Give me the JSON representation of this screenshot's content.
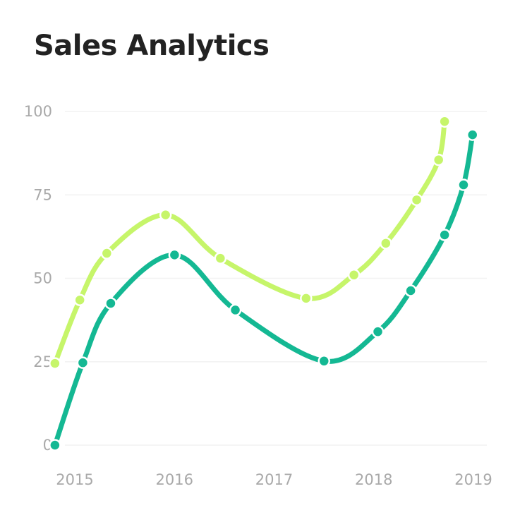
{
  "chart_data": {
    "type": "line",
    "title": "Sales Analytics",
    "xlabel": "",
    "ylabel": "",
    "x_ticks": [
      "2015",
      "2016",
      "2017",
      "2018",
      "2019"
    ],
    "y_ticks": [
      0,
      25,
      50,
      75,
      100
    ],
    "ylim": [
      0,
      100
    ],
    "xlim": [
      2015,
      2019
    ],
    "grid": true,
    "legend": "none",
    "smooth": true,
    "series": [
      {
        "color": "#c6f56a",
        "points": [
          [
            2014.9,
            24.5
          ],
          [
            2015.15,
            43.5
          ],
          [
            2015.42,
            57.5
          ],
          [
            2016.01,
            69
          ],
          [
            2016.56,
            56
          ],
          [
            2017.42,
            44
          ],
          [
            2017.9,
            51
          ],
          [
            2018.22,
            60.5
          ],
          [
            2018.53,
            73.5
          ],
          [
            2018.75,
            85.5
          ],
          [
            2018.81,
            97
          ]
        ]
      },
      {
        "color": "#14b893",
        "points": [
          [
            2014.9,
            0
          ],
          [
            2015.18,
            24.7
          ],
          [
            2015.46,
            42.5
          ],
          [
            2016.1,
            57
          ],
          [
            2016.71,
            40.5
          ],
          [
            2017.6,
            25.2
          ],
          [
            2018.14,
            34
          ],
          [
            2018.47,
            46.3
          ],
          [
            2018.81,
            63
          ],
          [
            2019.0,
            78
          ],
          [
            2019.09,
            93
          ]
        ]
      }
    ]
  }
}
